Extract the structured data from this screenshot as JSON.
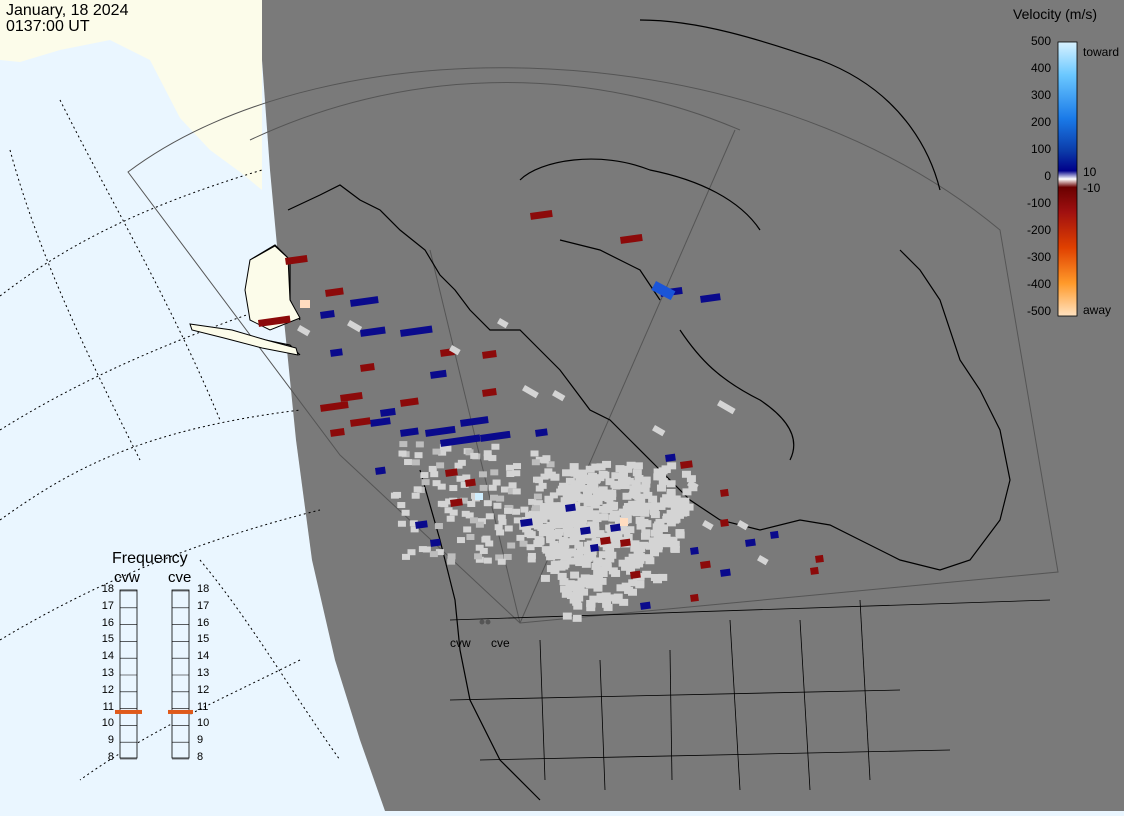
{
  "header": {
    "date": "January, 18 2024",
    "time": "0137:00 UT"
  },
  "velocity_scale": {
    "title": "Velocity (m/s)",
    "ticks": [
      "500",
      "400",
      "300",
      "200",
      "100",
      "0",
      "-100",
      "-200",
      "-300",
      "-400",
      "-500"
    ],
    "side_labels": [
      "toward",
      "10",
      "-10",
      "away"
    ]
  },
  "frequency_panel": {
    "title": "Frequency",
    "radars": [
      {
        "name": "cvw",
        "selected_mhz": 10.8
      },
      {
        "name": "cve",
        "selected_mhz": 10.8
      }
    ],
    "ticks": [
      "18",
      "17",
      "16",
      "15",
      "14",
      "13",
      "12",
      "11",
      "10",
      "9",
      "8"
    ]
  },
  "radar_sites": [
    {
      "label": "cvw"
    },
    {
      "label": "cve"
    }
  ],
  "colors": {
    "night_shade": "#7a7a7a",
    "ocean_day": "#eaf6ff",
    "land_day": "#fcfcea",
    "toward_dark": "#0a0a8c",
    "away_dark": "#8c0a0a",
    "ground_scatter": "#d4d4d4",
    "frequency_marker": "#e05a1a"
  }
}
